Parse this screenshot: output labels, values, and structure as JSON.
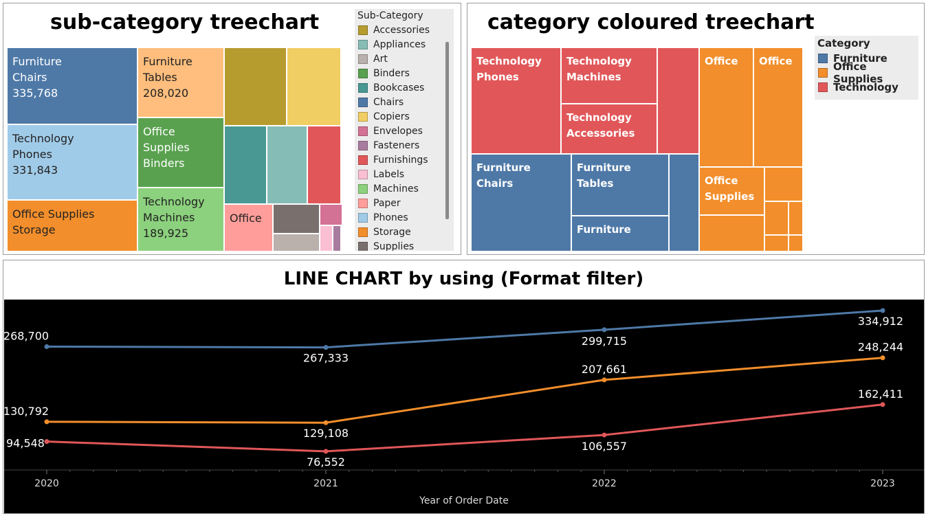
{
  "subcat_panel": {
    "title": "sub-category treechart",
    "legend": {
      "title": "Sub-Category",
      "items": [
        {
          "label": "Accessories",
          "color": "#b69b2f"
        },
        {
          "label": "Appliances",
          "color": "#86bcb6"
        },
        {
          "label": "Art",
          "color": "#bab0ac"
        },
        {
          "label": "Binders",
          "color": "#59a14f"
        },
        {
          "label": "Bookcases",
          "color": "#499894"
        },
        {
          "label": "Chairs",
          "color": "#4e79a7"
        },
        {
          "label": "Copiers",
          "color": "#f1ce63"
        },
        {
          "label": "Envelopes",
          "color": "#d37295"
        },
        {
          "label": "Fasteners",
          "color": "#a87c9f"
        },
        {
          "label": "Furnishings",
          "color": "#e15759"
        },
        {
          "label": "Labels",
          "color": "#fabfd2"
        },
        {
          "label": "Machines",
          "color": "#8cd17d"
        },
        {
          "label": "Paper",
          "color": "#ff9d9a"
        },
        {
          "label": "Phones",
          "color": "#a0cbe8"
        },
        {
          "label": "Storage",
          "color": "#f28e2b"
        },
        {
          "label": "Supplies",
          "color": "#79706e"
        }
      ]
    },
    "cells": [
      {
        "label": "Furniture\nChairs\n335,768",
        "color": "#4e79a7",
        "text": "#ffffff"
      },
      {
        "label": "Technology\nPhones\n331,843",
        "color": "#a0cbe8",
        "text": "#222222"
      },
      {
        "label": "Office Supplies\nStorage",
        "color": "#f28e2b",
        "text": "#222222"
      },
      {
        "label": "Furniture\nTables\n208,020",
        "color": "#ffbe7d",
        "text": "#222222"
      },
      {
        "label": "Office\nSupplies\nBinders",
        "color": "#59a14f",
        "text": "#ffffff"
      },
      {
        "label": "Technology\nMachines\n189,925",
        "color": "#8cd17d",
        "text": "#222222"
      },
      {
        "label": "",
        "color": "#b69b2f",
        "text": "#222222"
      },
      {
        "label": "",
        "color": "#f1ce63",
        "text": "#222222"
      },
      {
        "label": "",
        "color": "#499894",
        "text": "#222222"
      },
      {
        "label": "",
        "color": "#86bcb6",
        "text": "#222222"
      },
      {
        "label": "",
        "color": "#e15759",
        "text": "#222222"
      },
      {
        "label": "Office",
        "color": "#ff9d9a",
        "text": "#222222"
      },
      {
        "label": "",
        "color": "#79706e",
        "text": "#222222"
      },
      {
        "label": "",
        "color": "#d37295",
        "text": "#222222"
      },
      {
        "label": "",
        "color": "#bab0ac",
        "text": "#222222"
      },
      {
        "label": "",
        "color": "#fabfd2",
        "text": "#222222"
      },
      {
        "label": "",
        "color": "#a87c9f",
        "text": "#222222"
      }
    ]
  },
  "category_panel": {
    "title": "category coloured treechart",
    "legend": {
      "title": "Category",
      "items": [
        {
          "label": "Furniture",
          "color": "#4e79a7"
        },
        {
          "label": "Office Supplies",
          "color": "#f28e2b"
        },
        {
          "label": "Technology",
          "color": "#e15759"
        }
      ]
    },
    "cells": [
      {
        "label": "Technology\nPhones",
        "color": "#e15759"
      },
      {
        "label": "Technology\nMachines",
        "color": "#e15759"
      },
      {
        "label": "Technology\nAccessories",
        "color": "#e15759"
      },
      {
        "label": "",
        "color": "#e15759"
      },
      {
        "label": "Furniture\nChairs",
        "color": "#4e79a7"
      },
      {
        "label": "Furniture\nTables",
        "color": "#4e79a7"
      },
      {
        "label": "Furniture",
        "color": "#4e79a7"
      },
      {
        "label": "",
        "color": "#4e79a7"
      },
      {
        "label": "Office",
        "color": "#f28e2b"
      },
      {
        "label": "Office",
        "color": "#f28e2b"
      },
      {
        "label": "Office\nSupplies",
        "color": "#f28e2b"
      },
      {
        "label": "",
        "color": "#f28e2b"
      },
      {
        "label": "",
        "color": "#f28e2b"
      },
      {
        "label": "",
        "color": "#f28e2b"
      },
      {
        "label": "",
        "color": "#f28e2b"
      },
      {
        "label": "",
        "color": "#f28e2b"
      },
      {
        "label": "",
        "color": "#f28e2b"
      },
      {
        "label": "",
        "color": "#f28e2b"
      }
    ]
  },
  "chart_data": {
    "type": "line",
    "title": "LINE CHART by using (Format filter)",
    "xlabel": "Year of Order Date",
    "ylabel": "",
    "x": [
      "2020",
      "2021",
      "2022",
      "2023"
    ],
    "ylim": [
      60000,
      345000
    ],
    "grid": false,
    "background": "#000000",
    "series": [
      {
        "color": "#4e79a7",
        "values": [
          268700,
          267333,
          299715,
          334912
        ],
        "labels": [
          "268,700",
          "267,333",
          "299,715",
          "334,912"
        ]
      },
      {
        "color": "#f28e2b",
        "values": [
          130792,
          129108,
          207661,
          248244
        ],
        "labels": [
          "130,792",
          "129,108",
          "207,661",
          "248,244"
        ]
      },
      {
        "color": "#e15759",
        "values": [
          94548,
          76552,
          106557,
          162411
        ],
        "labels": [
          "94,548",
          "76,552",
          "106,557",
          "162,411"
        ]
      }
    ]
  }
}
